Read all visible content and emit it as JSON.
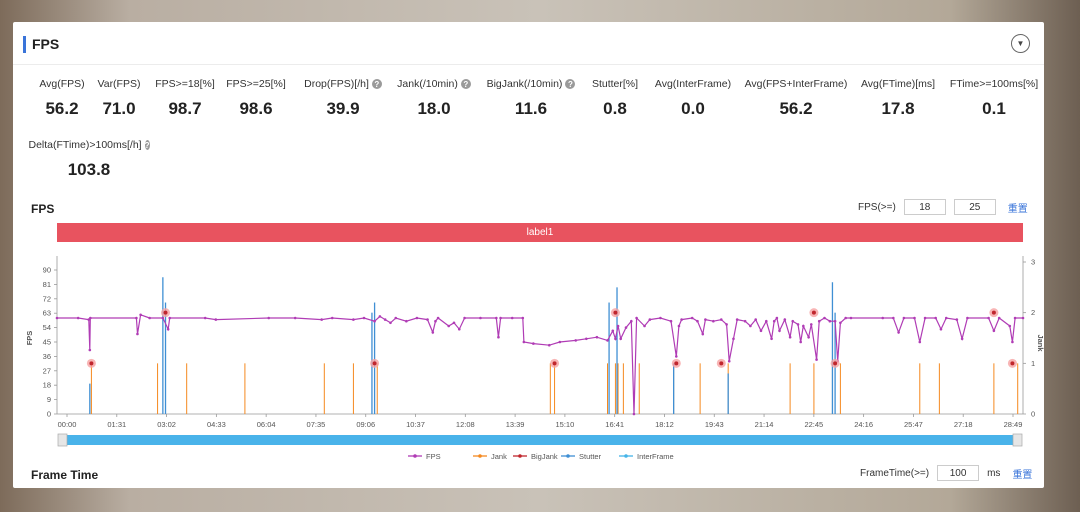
{
  "panel": {
    "title": "FPS"
  },
  "metrics": [
    {
      "label": "Avg(FPS)",
      "value": "56.2",
      "help": false
    },
    {
      "label": "Var(FPS)",
      "value": "71.0",
      "help": false
    },
    {
      "label": "FPS>=18[%]",
      "value": "98.7",
      "help": false
    },
    {
      "label": "FPS>=25[%]",
      "value": "98.6",
      "help": false
    },
    {
      "label": "Drop(FPS)[/h]",
      "value": "39.9",
      "help": true
    },
    {
      "label": "Jank(/10min)",
      "value": "18.0",
      "help": true
    },
    {
      "label": "BigJank(/10min)",
      "value": "11.6",
      "help": true
    },
    {
      "label": "Stutter[%]",
      "value": "0.8",
      "help": false
    },
    {
      "label": "Avg(InterFrame)",
      "value": "0.0",
      "help": false
    },
    {
      "label": "Avg(FPS+InterFrame)",
      "value": "56.2",
      "help": false
    },
    {
      "label": "Avg(FTime)[ms]",
      "value": "17.8",
      "help": false
    },
    {
      "label": "FTime>=100ms[%]",
      "value": "0.1",
      "help": false
    },
    {
      "label": "Delta(FTime)>100ms[/h]",
      "value": "103.8",
      "help": true
    }
  ],
  "fps_section": {
    "title": "FPS",
    "threshold_label": "FPS(>=)",
    "threshold_1": "18",
    "threshold_2": "25",
    "reset_label": "重置",
    "segment_label": "label1"
  },
  "frame_time_section": {
    "title": "Frame Time",
    "threshold_label": "FrameTime(>=)",
    "threshold_value": "100",
    "unit": "ms",
    "reset_label": "重置"
  },
  "chart_data": {
    "type": "line",
    "x_tick_labels": [
      "00:00",
      "01:31",
      "03:02",
      "04:33",
      "06:04",
      "07:35",
      "09:06",
      "10:37",
      "12:08",
      "13:39",
      "15:10",
      "16:41",
      "18:12",
      "19:43",
      "21:14",
      "22:45",
      "24:16",
      "25:47",
      "27:18",
      "28:49"
    ],
    "x_range_seconds": [
      0,
      1825
    ],
    "ylabel": "FPS",
    "y_ticks": [
      0,
      9,
      18,
      27,
      36,
      45,
      54,
      63,
      72,
      81,
      90
    ],
    "ylim": [
      0,
      95
    ],
    "y2label": "Jank",
    "y2_ticks": [
      0,
      1,
      2,
      3
    ],
    "y2lim": [
      0,
      3
    ],
    "legend": [
      "FPS",
      "Jank",
      "BigJank",
      "Stutter",
      "InterFrame"
    ],
    "legend_position": "bottom",
    "colors": {
      "FPS": "#b03cb5",
      "Jank": "#f5891f",
      "BigJank": "#c0262d",
      "Stutter": "#3f8fd4",
      "InterFrame": "#45b4e8"
    },
    "fps_series": [
      [
        0,
        60
      ],
      [
        40,
        60
      ],
      [
        60,
        59
      ],
      [
        62,
        40
      ],
      [
        63,
        60
      ],
      [
        150,
        60
      ],
      [
        152,
        50
      ],
      [
        158,
        62
      ],
      [
        175,
        60
      ],
      [
        200,
        60
      ],
      [
        210,
        53
      ],
      [
        213,
        60
      ],
      [
        280,
        60
      ],
      [
        300,
        59
      ],
      [
        400,
        60
      ],
      [
        450,
        60
      ],
      [
        500,
        59
      ],
      [
        520,
        60
      ],
      [
        560,
        59
      ],
      [
        580,
        60
      ],
      [
        600,
        58
      ],
      [
        610,
        61
      ],
      [
        620,
        59
      ],
      [
        630,
        57
      ],
      [
        640,
        60
      ],
      [
        660,
        58
      ],
      [
        680,
        60
      ],
      [
        700,
        59
      ],
      [
        710,
        51
      ],
      [
        715,
        58
      ],
      [
        720,
        60
      ],
      [
        740,
        55
      ],
      [
        750,
        57
      ],
      [
        760,
        53
      ],
      [
        770,
        60
      ],
      [
        800,
        60
      ],
      [
        830,
        60
      ],
      [
        834,
        48
      ],
      [
        838,
        60
      ],
      [
        860,
        60
      ],
      [
        880,
        60
      ],
      [
        882,
        45
      ],
      [
        900,
        44
      ],
      [
        930,
        43
      ],
      [
        950,
        45
      ],
      [
        980,
        46
      ],
      [
        1000,
        47
      ],
      [
        1020,
        48
      ],
      [
        1040,
        46
      ],
      [
        1050,
        52
      ],
      [
        1055,
        47
      ],
      [
        1060,
        55
      ],
      [
        1065,
        47
      ],
      [
        1075,
        54
      ],
      [
        1085,
        58
      ],
      [
        1090,
        0
      ],
      [
        1095,
        60
      ],
      [
        1110,
        55
      ],
      [
        1120,
        59
      ],
      [
        1140,
        60
      ],
      [
        1160,
        58
      ],
      [
        1170,
        36
      ],
      [
        1175,
        55
      ],
      [
        1180,
        59
      ],
      [
        1200,
        60
      ],
      [
        1210,
        58
      ],
      [
        1220,
        50
      ],
      [
        1225,
        59
      ],
      [
        1240,
        58
      ],
      [
        1255,
        59
      ],
      [
        1265,
        56
      ],
      [
        1270,
        33
      ],
      [
        1278,
        47
      ],
      [
        1285,
        59
      ],
      [
        1300,
        58
      ],
      [
        1310,
        55
      ],
      [
        1320,
        59
      ],
      [
        1330,
        52
      ],
      [
        1340,
        58
      ],
      [
        1350,
        47
      ],
      [
        1355,
        58
      ],
      [
        1360,
        60
      ],
      [
        1365,
        52
      ],
      [
        1375,
        59
      ],
      [
        1385,
        48
      ],
      [
        1390,
        58
      ],
      [
        1400,
        56
      ],
      [
        1405,
        45
      ],
      [
        1410,
        55
      ],
      [
        1420,
        48
      ],
      [
        1425,
        56
      ],
      [
        1435,
        34
      ],
      [
        1440,
        58
      ],
      [
        1450,
        60
      ],
      [
        1460,
        58
      ],
      [
        1470,
        58
      ],
      [
        1475,
        33
      ],
      [
        1480,
        57
      ],
      [
        1490,
        60
      ],
      [
        1500,
        60
      ],
      [
        1560,
        60
      ],
      [
        1580,
        60
      ],
      [
        1590,
        51
      ],
      [
        1600,
        60
      ],
      [
        1620,
        60
      ],
      [
        1630,
        45
      ],
      [
        1640,
        60
      ],
      [
        1660,
        60
      ],
      [
        1670,
        53
      ],
      [
        1680,
        60
      ],
      [
        1700,
        59
      ],
      [
        1710,
        47
      ],
      [
        1720,
        60
      ],
      [
        1760,
        60
      ],
      [
        1770,
        52
      ],
      [
        1780,
        60
      ],
      [
        1800,
        55
      ],
      [
        1805,
        45
      ],
      [
        1810,
        60
      ],
      [
        1825,
        60
      ]
    ],
    "jank_events_seconds": [
      65,
      190,
      245,
      355,
      505,
      560,
      605,
      932,
      940,
      1040,
      1055,
      1060,
      1070,
      1100,
      1165,
      1215,
      1268,
      1385,
      1430,
      1465,
      1480,
      1630,
      1667,
      1770,
      1815
    ],
    "bigjank_events_seconds": [
      65,
      205,
      600,
      940,
      1055,
      1170,
      1255,
      1430,
      1470,
      1805,
      1770
    ],
    "stutter_spikes": [
      {
        "t": 62,
        "jank": 0.6
      },
      {
        "t": 200,
        "jank": 2.7
      },
      {
        "t": 205,
        "jank": 2.2
      },
      {
        "t": 595,
        "jank": 2.0
      },
      {
        "t": 600,
        "jank": 2.2
      },
      {
        "t": 1043,
        "jank": 2.2
      },
      {
        "t": 1058,
        "jank": 2.5
      },
      {
        "t": 1165,
        "jank": 1.0
      },
      {
        "t": 1268,
        "jank": 0.8
      },
      {
        "t": 1465,
        "jank": 2.6
      },
      {
        "t": 1470,
        "jank": 2.0
      }
    ],
    "range_slider": {
      "start_fraction": 0,
      "end_fraction": 1
    }
  }
}
